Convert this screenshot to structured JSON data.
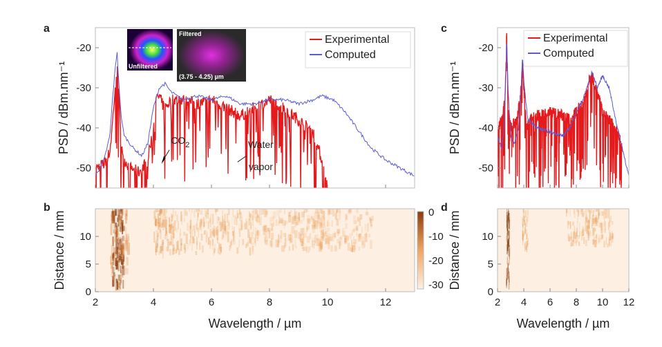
{
  "chart_data": [
    {
      "panel": "a",
      "type": "line",
      "ylabel": "PSD / dBm.nm⁻¹",
      "xlim": [
        2,
        13
      ],
      "ylim": [
        -55,
        -15
      ],
      "yticks": [
        -20,
        -30,
        -40,
        -50
      ],
      "legend": [
        "Experimental",
        "Computed"
      ],
      "legend_position": "top-right",
      "series": [
        {
          "name": "Experimental",
          "color": "#e41a1c",
          "x": [
            2.0,
            2.3,
            2.5,
            2.6,
            2.7,
            2.75,
            2.8,
            2.9,
            3.0,
            3.2,
            3.5,
            3.8,
            4.0,
            4.1,
            4.2,
            4.3,
            4.4,
            4.6,
            5.0,
            5.5,
            6.0,
            6.5,
            7.0,
            7.5,
            8.0,
            8.5,
            9.0,
            9.5,
            9.8,
            10.0
          ],
          "y": [
            -50,
            -49,
            -46,
            -38,
            -28,
            -23,
            -30,
            -44,
            -48,
            -50,
            -51,
            -48,
            -40,
            -33,
            -32,
            -34,
            -35,
            -33,
            -33,
            -34,
            -33,
            -35,
            -37,
            -35,
            -33,
            -35,
            -38,
            -41,
            -48,
            -55
          ]
        },
        {
          "name": "Computed",
          "color": "#5b5bd6",
          "x": [
            2.0,
            2.3,
            2.5,
            2.6,
            2.7,
            2.75,
            2.8,
            2.9,
            3.0,
            3.3,
            3.6,
            3.8,
            4.0,
            4.2,
            4.4,
            4.6,
            5.0,
            5.5,
            6.0,
            6.5,
            7.0,
            7.5,
            8.0,
            8.5,
            9.0,
            9.5,
            9.8,
            10.2,
            10.6,
            11.0,
            11.5,
            12.0,
            12.5,
            13.0
          ],
          "y": [
            -52,
            -48,
            -42,
            -32,
            -24,
            -21,
            -28,
            -38,
            -42,
            -45,
            -47,
            -44,
            -35,
            -30,
            -29,
            -31,
            -33,
            -32,
            -33,
            -32,
            -34,
            -34,
            -33,
            -33,
            -34,
            -33,
            -32,
            -33,
            -36,
            -40,
            -45,
            -48,
            -50,
            -52
          ]
        }
      ],
      "annotations": [
        {
          "text": "CO",
          "sub": "2",
          "at": [
            4.25,
            -49
          ]
        },
        {
          "text": "Water",
          "line2": "vapor",
          "at": [
            6.85,
            -49
          ]
        }
      ],
      "insets": [
        "Unfiltered",
        "Filtered",
        "(3.75 - 4.25) µm"
      ]
    },
    {
      "panel": "b",
      "type": "heatmap",
      "xlabel": "Wavelength / µm",
      "ylabel": "Distance / mm",
      "xlim": [
        2,
        13
      ],
      "ylim": [
        0,
        15
      ],
      "xticks": [
        2,
        4,
        6,
        8,
        10,
        12
      ],
      "yticks": [
        0,
        5,
        10
      ],
      "colorbar": {
        "ticks": [
          0,
          -10,
          -20,
          -30
        ],
        "low": "#fdf0e2",
        "high": "#8a3c0a"
      }
    },
    {
      "panel": "c",
      "type": "line",
      "ylabel": "PSD / dBm.nm⁻¹",
      "xlim": [
        2,
        12
      ],
      "ylim": [
        -55,
        -15
      ],
      "yticks": [
        -20,
        -30,
        -40,
        -50
      ],
      "legend": [
        "Experimental",
        "Computed"
      ],
      "legend_position": "top-right",
      "series": [
        {
          "name": "Experimental",
          "color": "#e41a1c",
          "x": [
            2.0,
            2.4,
            2.6,
            2.7,
            2.8,
            3.0,
            3.5,
            3.8,
            3.9,
            4.0,
            4.2,
            4.5,
            5.0,
            6.0,
            7.0,
            7.5,
            8.0,
            8.5,
            9.0,
            9.2,
            9.5,
            10.0,
            10.5,
            11.0,
            11.5
          ],
          "y": [
            -40,
            -38,
            -30,
            -15,
            -35,
            -40,
            -38,
            -30,
            -24,
            -30,
            -40,
            -38,
            -37,
            -36,
            -37,
            -38,
            -36,
            -34,
            -28,
            -27,
            -30,
            -36,
            -38,
            -40,
            -45
          ]
        },
        {
          "name": "Computed",
          "color": "#5b5bd6",
          "x": [
            2.0,
            2.3,
            2.5,
            2.6,
            2.7,
            2.8,
            3.0,
            3.3,
            3.6,
            3.8,
            3.9,
            4.0,
            4.3,
            5.0,
            6.0,
            7.0,
            7.5,
            8.0,
            8.5,
            9.0,
            9.2,
            9.6,
            10.0,
            10.5,
            11.0,
            11.5,
            12.0
          ],
          "y": [
            -42,
            -45,
            -40,
            -30,
            -18,
            -30,
            -42,
            -44,
            -40,
            -30,
            -22,
            -28,
            -38,
            -40,
            -41,
            -42,
            -40,
            -36,
            -33,
            -28,
            -26,
            -30,
            -27,
            -30,
            -38,
            -45,
            -52
          ]
        }
      ]
    },
    {
      "panel": "d",
      "type": "heatmap",
      "xlabel": "Wavelength / µm",
      "ylabel": "Distance / mm",
      "xlim": [
        2,
        12
      ],
      "ylim": [
        0,
        15
      ],
      "xticks": [
        2,
        4,
        6,
        8,
        10,
        12
      ],
      "yticks": [
        0,
        5,
        10
      ]
    }
  ]
}
